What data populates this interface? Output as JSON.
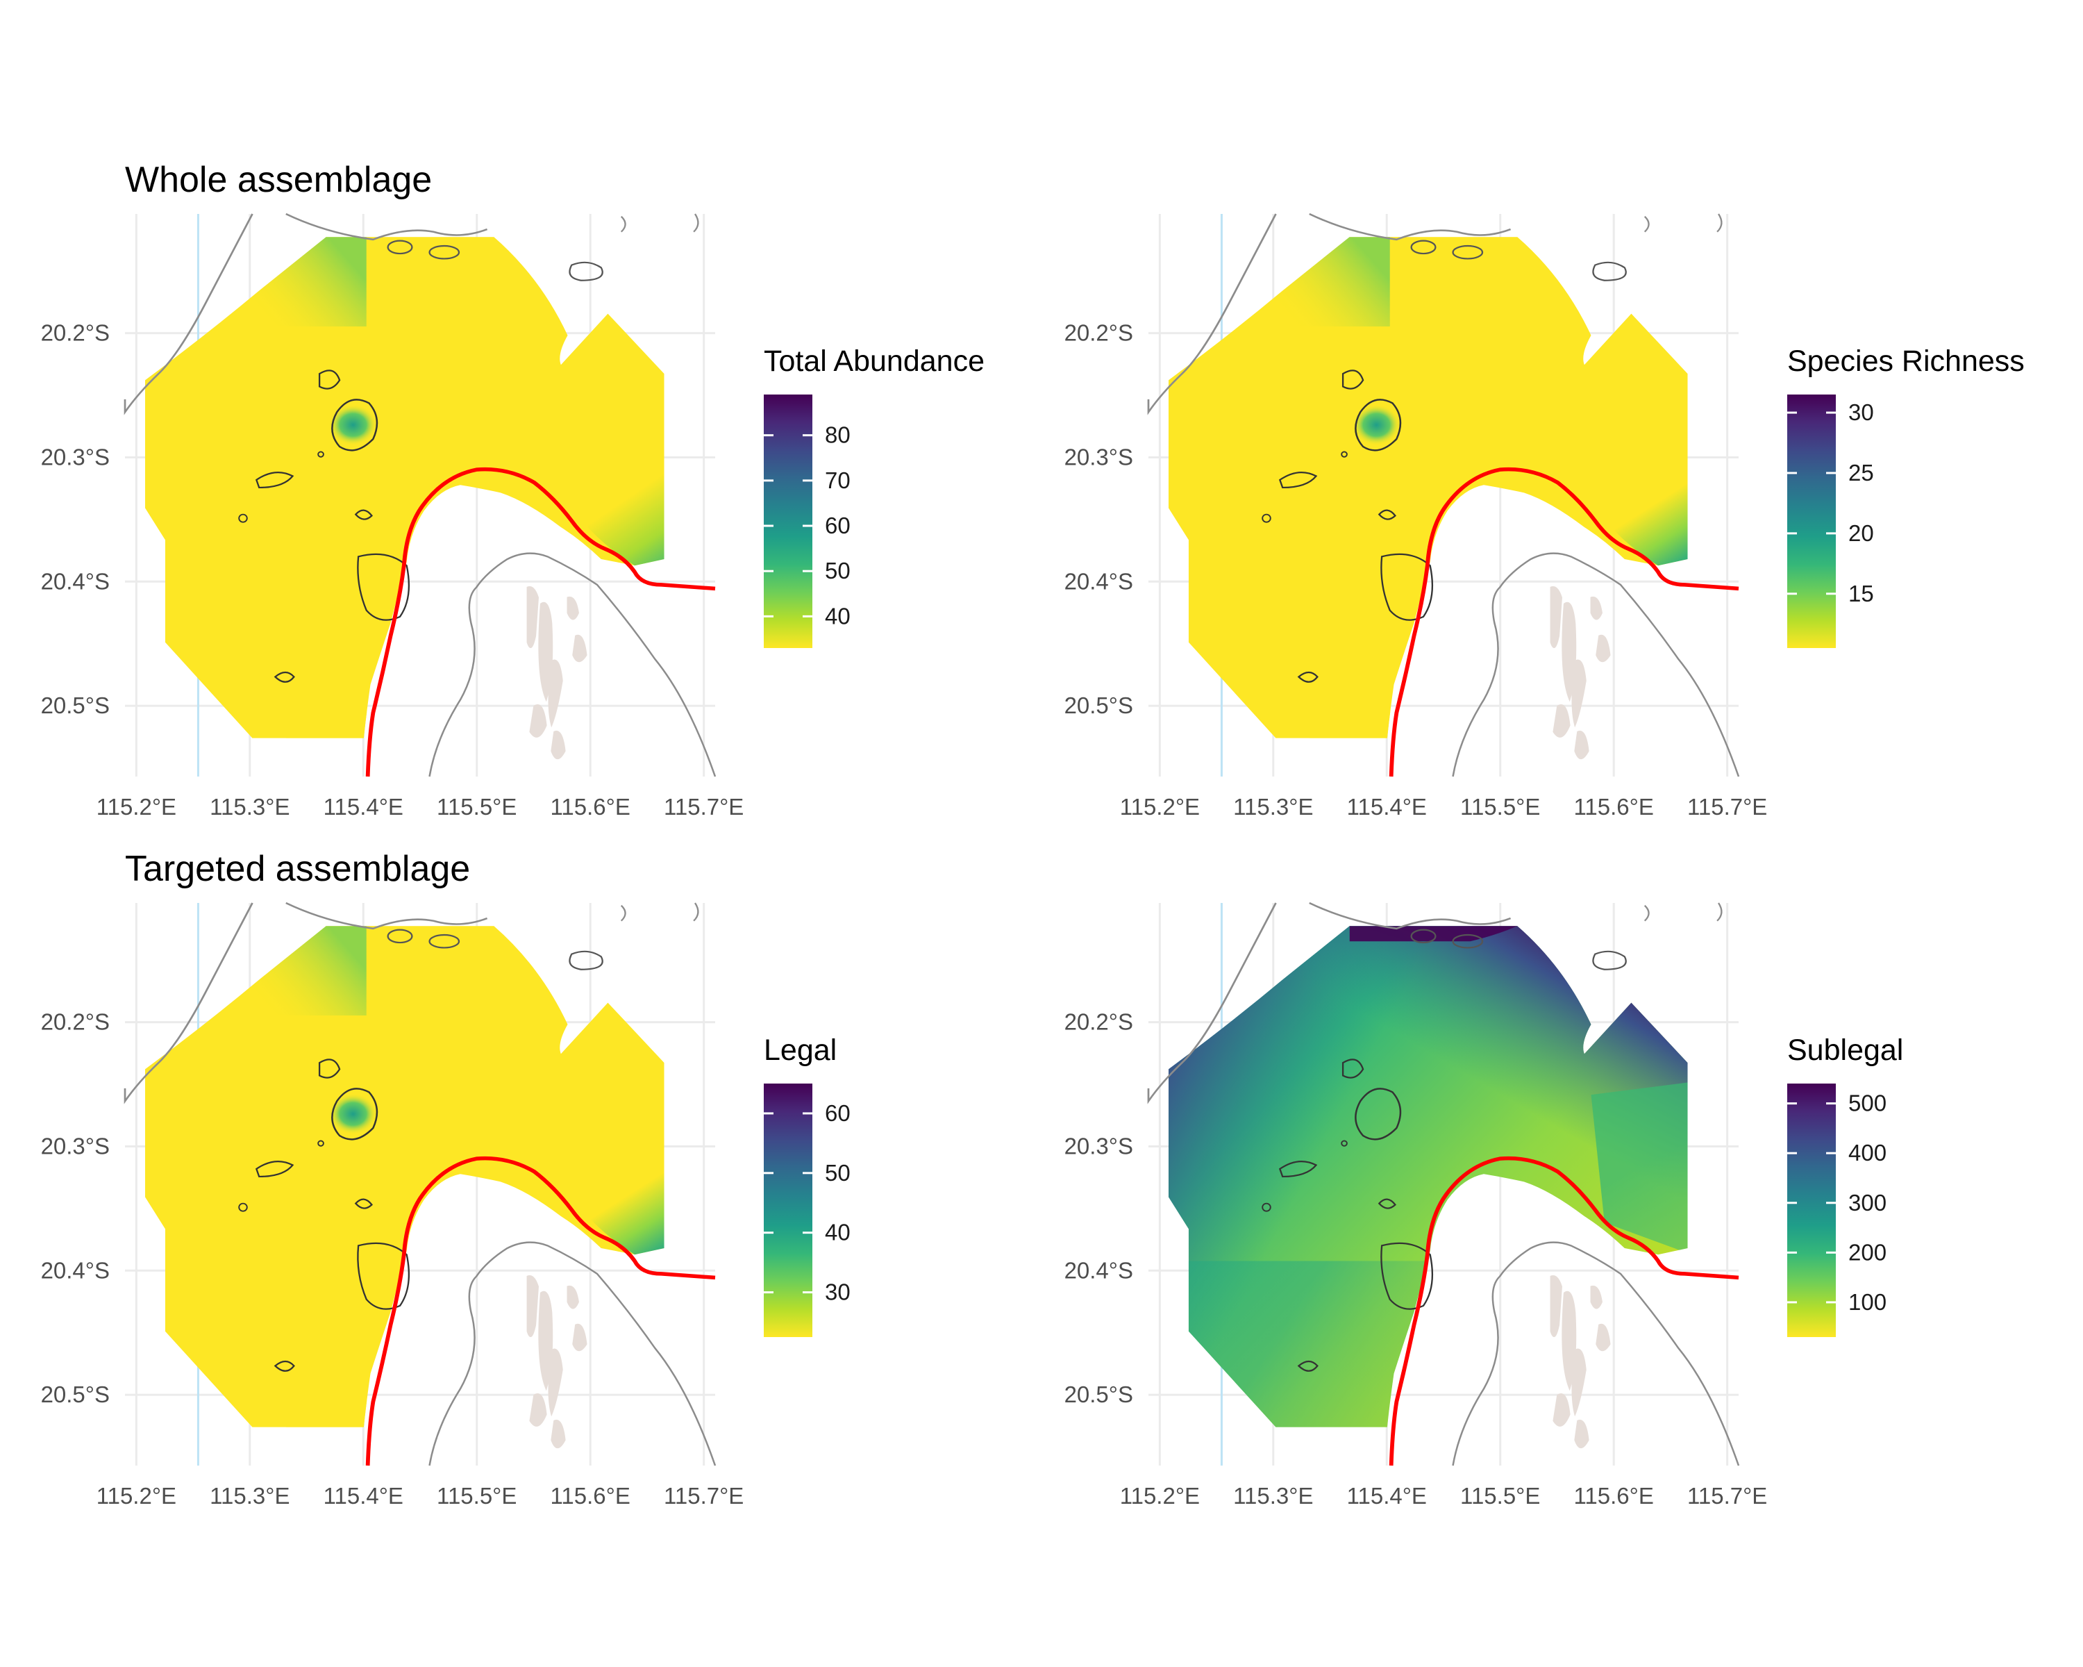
{
  "section_titles": [
    "Whole assemblage",
    "Targeted assemblage"
  ],
  "axes": {
    "x_ticks": [
      "115.2°E",
      "115.3°E",
      "115.4°E",
      "115.5°E",
      "115.6°E",
      "115.7°E"
    ],
    "y_ticks": [
      "20.2°S",
      "20.3°S",
      "20.4°S",
      "20.5°S"
    ],
    "x_range": [
      115.19,
      115.71
    ],
    "y_range": [
      -20.557,
      -20.104
    ],
    "grid": true
  },
  "colors": {
    "palette": "viridis (reversed: yellow = low, dark purple = high)",
    "viridis_stops": [
      "#fde725",
      "#b5de2b",
      "#6ece58",
      "#35b779",
      "#1f9e89",
      "#26828e",
      "#31688e",
      "#3e4989",
      "#482878",
      "#440154"
    ],
    "zone_boundary": "#ff0000",
    "coastline": "#8c8c8c",
    "land_patches": "#e6ddd8",
    "meridian_line": "#bde3f5",
    "grid": "#ebebeb"
  },
  "chart_data": [
    {
      "type": "heatmap",
      "panel": "top-left",
      "group": "Whole assemblage",
      "legend_title": "Total Abundance",
      "legend_ticks": [
        40,
        50,
        60,
        70,
        80
      ],
      "scale_range": [
        33,
        89
      ],
      "legend_placement": "right",
      "pattern": "mostly low (yellow); high values in the east offshore zone and the south tip"
    },
    {
      "type": "heatmap",
      "panel": "top-right",
      "group": "Whole assemblage",
      "legend_title": "Species Richness",
      "legend_ticks": [
        15,
        20,
        25,
        30
      ],
      "scale_range": [
        10.5,
        31.5
      ],
      "legend_placement": "right",
      "pattern": "mostly low (yellow); high values in the east offshore zone and the south tip"
    },
    {
      "type": "heatmap",
      "panel": "bottom-left",
      "group": "Targeted assemblage",
      "legend_title": "Legal",
      "legend_ticks": [
        30,
        40,
        50,
        60
      ],
      "scale_range": [
        22.5,
        65
      ],
      "legend_placement": "right",
      "pattern": "mostly low (yellow); high values in the east offshore zone and the south tip"
    },
    {
      "type": "heatmap",
      "panel": "bottom-right",
      "group": "Targeted assemblage",
      "legend_title": "Sublegal",
      "legend_ticks": [
        100,
        200,
        300,
        400,
        500
      ],
      "scale_range": [
        30,
        540
      ],
      "legend_placement": "right",
      "pattern": "high (purple) in the north, moderate in the west, low (yellow-green) in the centre and south-east"
    }
  ]
}
